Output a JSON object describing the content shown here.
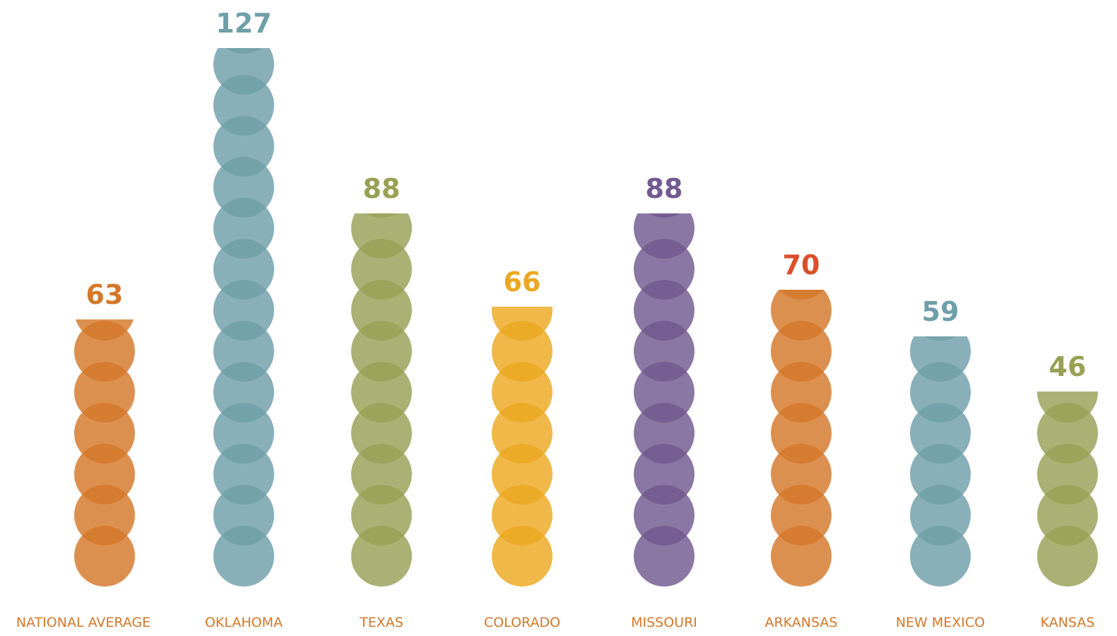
{
  "chart_data": {
    "type": "pictorial-bar",
    "categories": [
      "NATIONAL AVERAGE",
      "OKLAHOMA",
      "TEXAS",
      "COLORADO",
      "MISSOURI",
      "ARKANSAS",
      "NEW MEXICO",
      "KANSAS"
    ],
    "values": [
      63,
      127,
      88,
      66,
      88,
      70,
      59,
      46
    ],
    "colors": [
      "#d4782a",
      "#6f9fa8",
      "#98a055",
      "#eca820",
      "#72598f",
      "#d4782a",
      "#6f9fa8",
      "#98a055"
    ],
    "value_label_colors": [
      "#d4782a",
      "#6f9fa8",
      "#98a055",
      "#eca820",
      "#72598f",
      "#d9502a",
      "#6f9fa8",
      "#98a055"
    ],
    "category_label_color": "#d4782a"
  }
}
